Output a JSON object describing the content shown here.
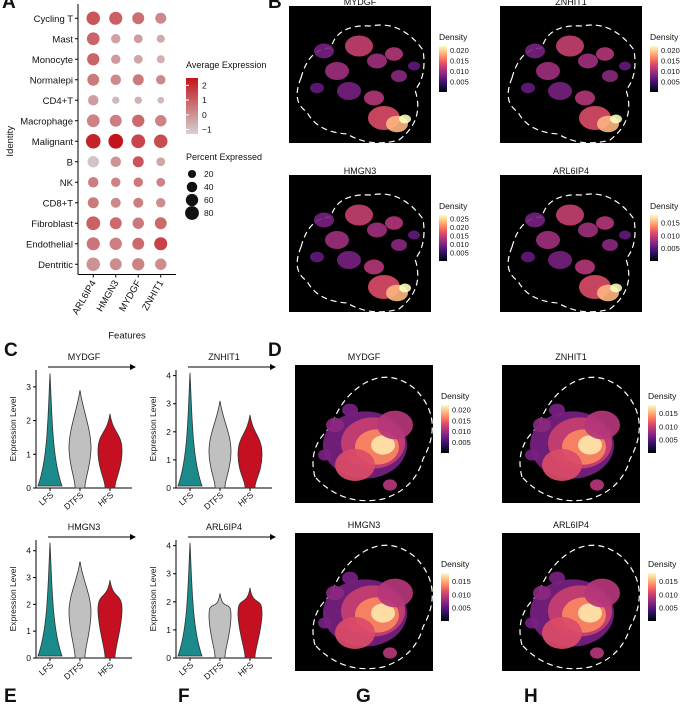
{
  "panel_labels": {
    "A": "A",
    "B": "B",
    "C": "C",
    "D": "D",
    "E": "E",
    "F": "F",
    "G": "G",
    "H": "H"
  },
  "colors": {
    "dot_low": "#d3d3d3",
    "dot_high": "#c4141b",
    "violin_lfs": "#1a8a8a",
    "violin_dtfs": "#c0c0c0",
    "violin_hfs": "#c41020",
    "density_bg": "#000000"
  },
  "chart_data": [
    {
      "type": "dotplot",
      "panel": "A",
      "ylabel": "Identity",
      "xlabel": "Features",
      "features": [
        "ARL6IP4",
        "HMGN3",
        "MYDGF",
        "ZNHIT1"
      ],
      "identities": [
        "Cycling T",
        "Mast",
        "Monocyte",
        "Normalepi",
        "CD4+T",
        "Macrophage",
        "Malignant",
        "B",
        "NK",
        "CD8+T",
        "Fibroblast",
        "Endothelial",
        "Dentritic"
      ],
      "avg_expression": [
        [
          1.2,
          1.0,
          0.7,
          0.2
        ],
        [
          0.9,
          -0.3,
          -0.2,
          -0.5
        ],
        [
          0.9,
          -0.2,
          -0.4,
          -0.6
        ],
        [
          0.5,
          0.2,
          0.5,
          0.2
        ],
        [
          -0.2,
          -0.8,
          -0.6,
          -0.8
        ],
        [
          0.3,
          0.4,
          0.8,
          0.3
        ],
        [
          2.2,
          2.5,
          1.5,
          1.4
        ],
        [
          -1.0,
          0.0,
          1.2,
          -0.4
        ],
        [
          0.4,
          0.3,
          0.5,
          0.3
        ],
        [
          0.5,
          0.2,
          0.4,
          0.1
        ],
        [
          1.0,
          0.8,
          0.5,
          0.8
        ],
        [
          0.6,
          0.4,
          0.8,
          1.6
        ],
        [
          0.0,
          0.1,
          0.3,
          0.1
        ]
      ],
      "pct_expressed": [
        [
          75,
          70,
          55,
          45
        ],
        [
          65,
          30,
          25,
          20
        ],
        [
          60,
          30,
          25,
          20
        ],
        [
          55,
          40,
          45,
          30
        ],
        [
          40,
          15,
          15,
          12
        ],
        [
          65,
          55,
          60,
          50
        ],
        [
          90,
          92,
          80,
          75
        ],
        [
          50,
          40,
          45,
          25
        ],
        [
          40,
          30,
          30,
          25
        ],
        [
          45,
          35,
          35,
          30
        ],
        [
          80,
          55,
          50,
          55
        ],
        [
          70,
          60,
          55,
          70
        ],
        [
          75,
          55,
          60,
          50
        ]
      ],
      "color_legend_title": "Average Expression",
      "color_legend_ticks": [
        "2",
        "1",
        "0",
        "−1"
      ],
      "color_legend_values": [
        2,
        1,
        0,
        -1
      ],
      "color_range": [
        -1.3,
        2.5
      ],
      "size_legend_title": "Percent Expressed",
      "size_legend_ticks": [
        "20",
        "40",
        "60",
        "80"
      ],
      "size_legend_values": [
        20,
        40,
        60,
        80
      ]
    },
    {
      "type": "density",
      "panel": "B",
      "plots": [
        {
          "title": "MYDGF",
          "legend_title": "Density",
          "ticks": [
            "0.020",
            "0.015",
            "0.010",
            "0.005"
          ],
          "tick_values": [
            0.02,
            0.015,
            0.01,
            0.005
          ],
          "max": 0.022
        },
        {
          "title": "ZNHIT1",
          "legend_title": "Density",
          "ticks": [
            "0.020",
            "0.015",
            "0.010",
            "0.005"
          ],
          "tick_values": [
            0.02,
            0.015,
            0.01,
            0.005
          ],
          "max": 0.022
        },
        {
          "title": "HMGN3",
          "legend_title": "Density",
          "ticks": [
            "0.025",
            "0.020",
            "0.015",
            "0.010",
            "0.005"
          ],
          "tick_values": [
            0.025,
            0.02,
            0.015,
            0.01,
            0.005
          ],
          "max": 0.027
        },
        {
          "title": "ARL6IP4",
          "legend_title": "Density",
          "ticks": [
            "0.015",
            "0.010",
            "0.005"
          ],
          "tick_values": [
            0.015,
            0.01,
            0.005
          ],
          "max": 0.018
        }
      ]
    },
    {
      "type": "violin",
      "panel": "C",
      "groups": [
        "LFS",
        "DTFS",
        "HFS"
      ],
      "ylabel": "Expression Level",
      "plots": [
        {
          "title": "MYDGF",
          "ymax": 3.5,
          "yticks": [
            "0",
            "1",
            "2",
            "3"
          ],
          "ytick_values": [
            0,
            1,
            2,
            3
          ],
          "group_max": [
            3.4,
            2.9,
            2.2
          ],
          "group_center": [
            0.1,
            1.2,
            1.1
          ]
        },
        {
          "title": "ZNHIT1",
          "ymax": 4.2,
          "yticks": [
            "0",
            "1",
            "2",
            "3",
            "4"
          ],
          "ytick_values": [
            0,
            1,
            2,
            3,
            4
          ],
          "group_max": [
            4.1,
            3.1,
            2.6
          ],
          "group_center": [
            0.1,
            1.3,
            1.2
          ]
        },
        {
          "title": "HMGN3",
          "ymax": 4.4,
          "yticks": [
            "0",
            "1",
            "2",
            "3",
            "4"
          ],
          "ytick_values": [
            0,
            1,
            2,
            3,
            4
          ],
          "group_max": [
            4.3,
            3.6,
            2.9
          ],
          "group_center": [
            0.1,
            1.7,
            1.8
          ]
        },
        {
          "title": "ARL6IP4",
          "ymax": 4.2,
          "yticks": [
            "0",
            "1",
            "2",
            "3",
            "4"
          ],
          "ytick_values": [
            0,
            1,
            2,
            3,
            4
          ],
          "group_max": [
            4.1,
            2.3,
            2.5
          ],
          "group_center": [
            0.1,
            1.5,
            1.6
          ]
        }
      ]
    },
    {
      "type": "density",
      "panel": "D",
      "plots": [
        {
          "title": "MYDGF",
          "legend_title": "Density",
          "ticks": [
            "0.020",
            "0.015",
            "0.010",
            "0.005"
          ],
          "tick_values": [
            0.02,
            0.015,
            0.01,
            0.005
          ],
          "max": 0.022
        },
        {
          "title": "ZNHIT1",
          "legend_title": "Density",
          "ticks": [
            "0.015",
            "0.010",
            "0.005"
          ],
          "tick_values": [
            0.015,
            0.01,
            0.005
          ],
          "max": 0.018
        },
        {
          "title": "HMGN3",
          "legend_title": "Density",
          "ticks": [
            "0.015",
            "0.010",
            "0.005"
          ],
          "tick_values": [
            0.015,
            0.01,
            0.005
          ],
          "max": 0.018
        },
        {
          "title": "ARL6IP4",
          "legend_title": "Density",
          "ticks": [
            "0.015",
            "0.010",
            "0.005"
          ],
          "tick_values": [
            0.015,
            0.01,
            0.005
          ],
          "max": 0.018
        }
      ]
    }
  ]
}
